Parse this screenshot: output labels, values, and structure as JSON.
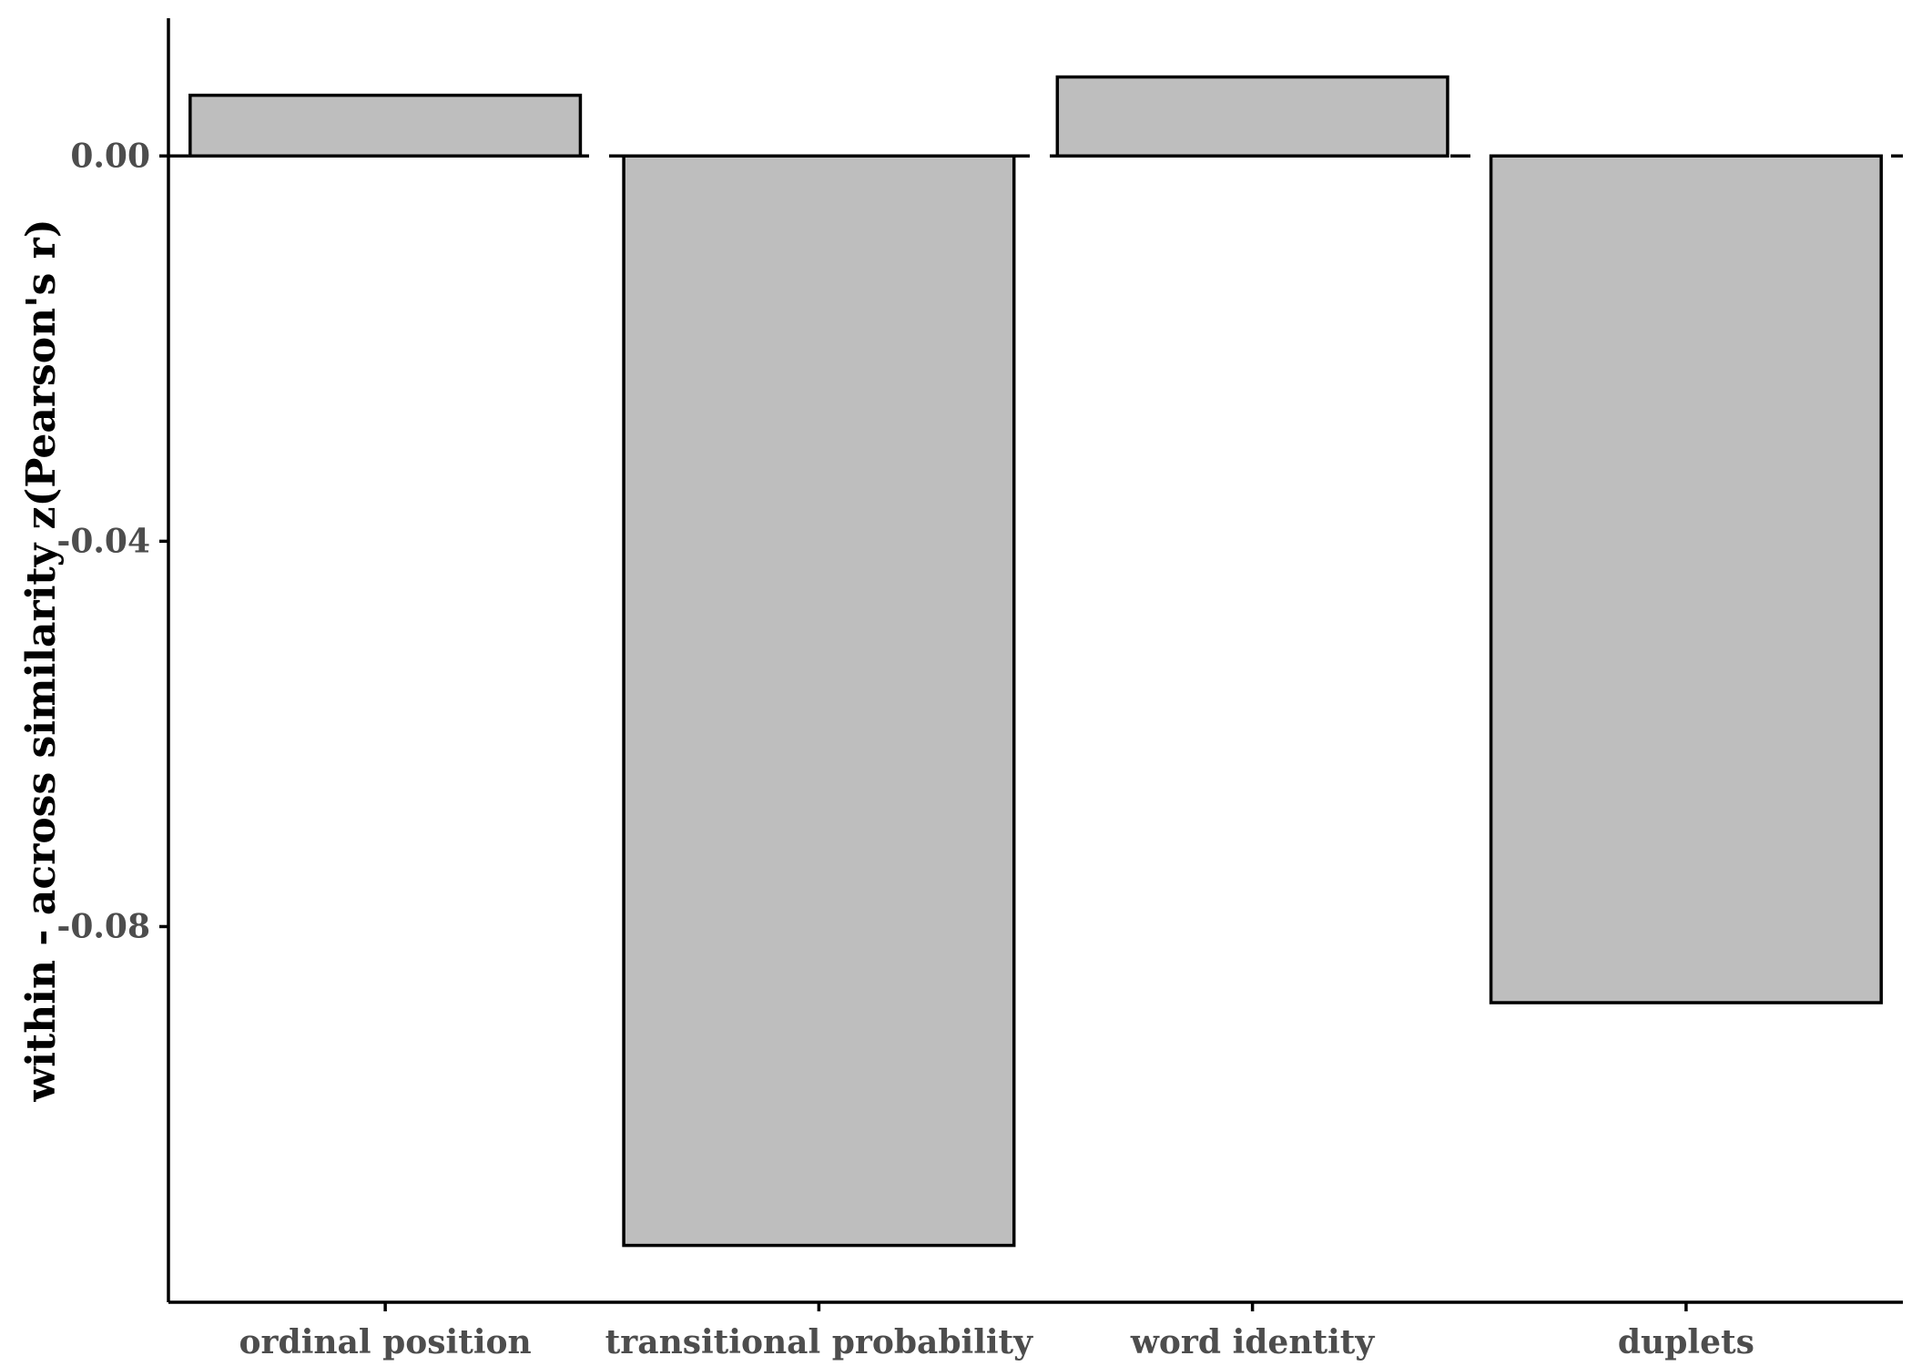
{
  "chart_data": {
    "type": "bar",
    "categories": [
      "ordinal position",
      "transitional probability",
      "word identity",
      "duplets"
    ],
    "values": [
      0.0063,
      -0.1131,
      0.0082,
      -0.0879
    ],
    "title": "",
    "xlabel": "",
    "ylabel": "within - across similarity z(Pearson's r)",
    "ylim": [
      -0.119,
      0.0143
    ],
    "yticks": [
      0.0,
      -0.04,
      -0.08
    ],
    "ytick_labels": [
      "0.00",
      "-0.04",
      "-0.08"
    ],
    "reference_line": {
      "y": 0,
      "style": "dashed"
    },
    "grid": false,
    "legend": "none",
    "colors": {
      "bar_fill": "#bebebe",
      "bar_stroke": "#000000",
      "axis": "#000000",
      "tick_text": "#4d4d4d"
    }
  }
}
